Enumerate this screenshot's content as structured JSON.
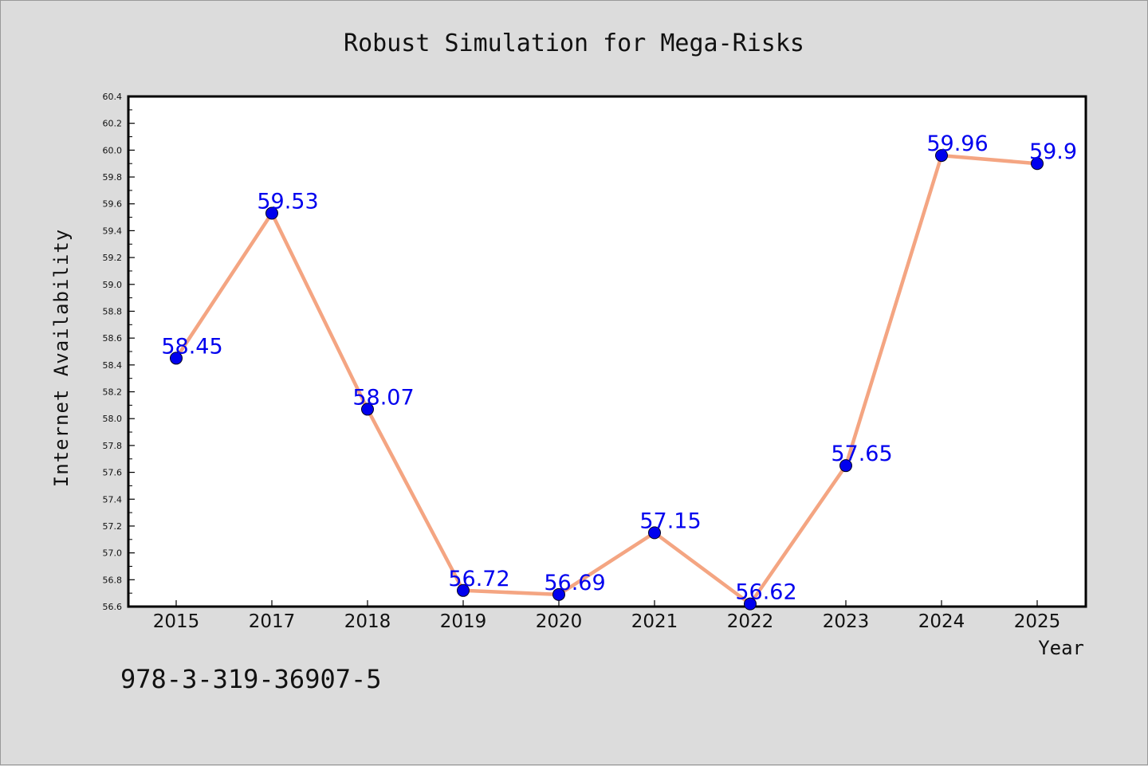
{
  "chart_data": {
    "type": "line",
    "title": "Robust Simulation for Mega-Risks",
    "xlabel": "Year",
    "ylabel": "Internet Availability",
    "categories": [
      "2015",
      "2017",
      "2018",
      "2019",
      "2020",
      "2021",
      "2022",
      "2023",
      "2024",
      "2025"
    ],
    "series": [
      {
        "values": [
          58.45,
          59.53,
          58.07,
          56.72,
          56.69,
          57.15,
          56.62,
          57.65,
          59.96,
          59.9
        ],
        "data_labels": [
          "58.45",
          "59.53",
          "58.07",
          "56.72",
          "56.69",
          "57.15",
          "56.62",
          "57.65",
          "59.96",
          "59.9"
        ]
      }
    ],
    "ylim": [
      56.6,
      60.4
    ],
    "yticks": [
      "56.6",
      "56.8",
      "57.0",
      "57.2",
      "57.4",
      "57.6",
      "57.8",
      "58.0",
      "58.2",
      "58.4",
      "58.6",
      "58.8",
      "59.0",
      "59.2",
      "59.4",
      "59.6",
      "59.8",
      "60.0",
      "60.2",
      "60.4"
    ],
    "grid": false,
    "legend": "none",
    "colors": {
      "line": "#f4a582",
      "marker": "#0000ee",
      "data_label": "#0000ee",
      "plot_background": "#ffffff",
      "figure_background": "#dcdcdc"
    }
  },
  "footer": {
    "isbn": "978-3-319-36907-5"
  }
}
